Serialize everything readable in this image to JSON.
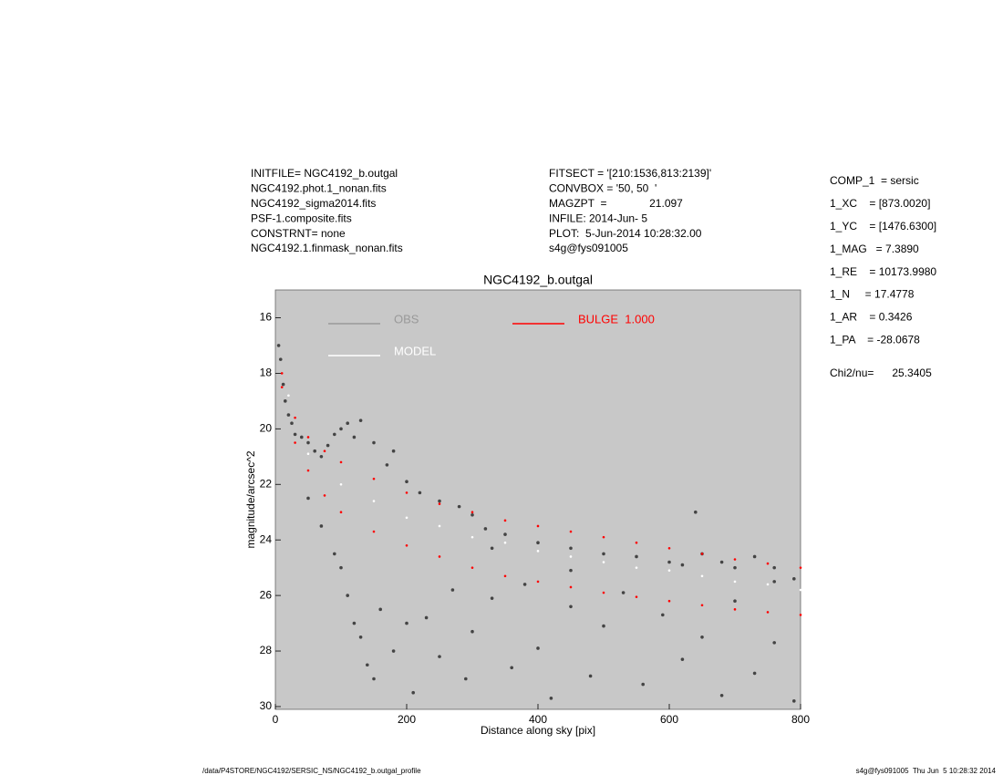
{
  "header": {
    "left": [
      "INITFILE= NGC4192_b.outgal",
      "NGC4192.phot.1_nonan.fits",
      "NGC4192_sigma2014.fits",
      "PSF-1.composite.fits",
      "CONSTRNT= none",
      "NGC4192.1.finmask_nonan.fits"
    ],
    "middle": [
      "FITSECT = '[210:1536,813:2139]'",
      "CONVBOX = '50, 50  '",
      "MAGZPT  =              21.097",
      "INFILE: 2014-Jun- 5",
      "PLOT:  5-Jun-2014 10:28:32.00",
      "s4g@fys091005"
    ],
    "right": [
      "COMP_1  = sersic",
      "1_XC    = [873.0020]",
      "1_YC    = [1476.6300]",
      "1_MAG   = 7.3890",
      "1_RE    = 10173.9980",
      "1_N     = 17.4778",
      "1_AR    = 0.3426",
      "1_PA    = -28.0678"
    ],
    "chi": "Chi2/nu=      25.3405"
  },
  "footer": {
    "left": "/data/P4STORE/NGC4192/SERSIC_NS/NGC4192_b.outgal_profile",
    "right": "s4g@fys091005  Thu Jun  5 10:28:32 2014"
  },
  "chart_data": {
    "type": "scatter",
    "title": "NGC4192_b.outgal",
    "xlabel": "Distance along sky [pix]",
    "ylabel": "magnitude/arcsec^2",
    "xlim": [
      0,
      800
    ],
    "ylim": [
      30.1,
      15
    ],
    "xticks": [
      0,
      200,
      400,
      600,
      800
    ],
    "yticks": [
      16,
      18,
      20,
      22,
      24,
      26,
      28,
      30
    ],
    "background": "#c8c8c8",
    "series": [
      {
        "name": "OBS",
        "color": "#444444",
        "legend_color": "#999999",
        "x": [
          5,
          8,
          12,
          15,
          20,
          25,
          30,
          40,
          50,
          60,
          70,
          80,
          90,
          100,
          110,
          120,
          130,
          150,
          170,
          180,
          200,
          220,
          250,
          280,
          300,
          320,
          350,
          400,
          450,
          500,
          550,
          600,
          620,
          650,
          680,
          700,
          730,
          760,
          790,
          50,
          70,
          90,
          100,
          110,
          120,
          130,
          140,
          150,
          160,
          180,
          200,
          210,
          230,
          250,
          270,
          290,
          300,
          330,
          360,
          380,
          400,
          420,
          450,
          480,
          500,
          530,
          560,
          590,
          620,
          650,
          680,
          700,
          730,
          760,
          790,
          760,
          640,
          330,
          450
        ],
        "values": [
          17,
          17.5,
          18.4,
          19,
          19.5,
          19.8,
          20.2,
          20.3,
          20.5,
          20.8,
          21,
          20.6,
          20.2,
          20,
          19.8,
          20.3,
          19.7,
          20.5,
          21.3,
          20.8,
          21.9,
          22.3,
          22.6,
          22.8,
          23.1,
          23.6,
          23.8,
          24.1,
          24.3,
          24.5,
          24.6,
          24.8,
          24.9,
          24.5,
          24.8,
          25,
          24.6,
          25,
          25.4,
          22.5,
          23.5,
          24.5,
          25,
          26,
          27,
          27.5,
          28.5,
          29,
          26.5,
          28,
          27,
          29.5,
          26.8,
          28.2,
          25.8,
          29,
          27.3,
          26.1,
          28.6,
          25.6,
          27.9,
          29.7,
          26.4,
          28.9,
          27.1,
          25.9,
          29.2,
          26.7,
          28.3,
          27.5,
          29.6,
          26.2,
          28.8,
          27.7,
          29.8,
          25.5,
          23,
          24.3,
          25.1
        ]
      },
      {
        "name": "MODEL",
        "color": "#ffffff",
        "legend_color": "#ffffff",
        "x": [
          20,
          50,
          100,
          150,
          200,
          250,
          300,
          350,
          400,
          450,
          500,
          550,
          600,
          650,
          700,
          750,
          800
        ],
        "values": [
          18.8,
          20.9,
          22,
          22.6,
          23.2,
          23.5,
          23.9,
          24.1,
          24.4,
          24.6,
          24.8,
          25,
          25.1,
          25.3,
          25.5,
          25.6,
          25.8
        ]
      },
      {
        "name": "BULGE  1.000",
        "color": "#ff0000",
        "legend_color": "#ff0000",
        "x": [
          10,
          30,
          50,
          75,
          100,
          150,
          200,
          250,
          300,
          350,
          400,
          450,
          500,
          550,
          600,
          650,
          700,
          750,
          800,
          10,
          30,
          50,
          75,
          100,
          150,
          200,
          250,
          300,
          350,
          400,
          450,
          500,
          550,
          600,
          650,
          700,
          750,
          800
        ],
        "values": [
          18.5,
          20.5,
          21.5,
          22.4,
          23,
          23.7,
          24.2,
          24.6,
          25,
          25.3,
          25.5,
          25.7,
          25.9,
          26.05,
          26.2,
          26.35,
          26.5,
          26.6,
          26.7,
          18,
          19.6,
          20.3,
          20.8,
          21.2,
          21.8,
          22.3,
          22.7,
          23,
          23.3,
          23.5,
          23.7,
          23.9,
          24.1,
          24.3,
          24.5,
          24.7,
          24.85,
          25
        ]
      }
    ]
  }
}
